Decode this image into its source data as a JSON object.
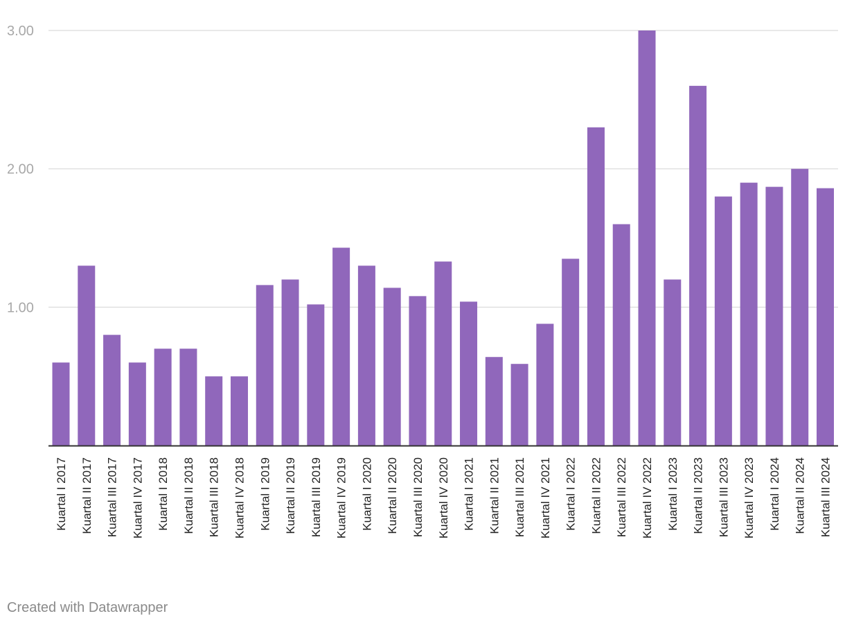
{
  "chart_data": {
    "type": "bar",
    "categories": [
      "Kuartal I 2017",
      "Kuartal II 2017",
      "Kuartal III 2017",
      "Kuartal IV 2017",
      "Kuartal I 2018",
      "Kuartal II 2018",
      "Kuartal III 2018",
      "Kuartal IV 2018",
      "Kuartal I 2019",
      "Kuartal II 2019",
      "Kuartal III 2019",
      "Kuartal IV 2019",
      "Kuartal I 2020",
      "Kuartal II 2020",
      "Kuartal III 2020",
      "Kuartal IV 2020",
      "Kuartal I 2021",
      "Kuartal II 2021",
      "Kuartal III 2021",
      "Kuartal IV 2021",
      "Kuartal I 2022",
      "Kuartal II 2022",
      "Kuartal III 2022",
      "Kuartal IV 2022",
      "Kuartal I 2023",
      "Kuartal II 2023",
      "Kuartal III 2023",
      "Kuartal IV 2023",
      "Kuartal I 2024",
      "Kuartal II 2024",
      "Kuartal III 2024"
    ],
    "values": [
      0.6,
      1.3,
      0.8,
      0.6,
      0.7,
      0.7,
      0.5,
      0.5,
      1.16,
      1.2,
      1.02,
      1.43,
      1.3,
      1.14,
      1.08,
      1.33,
      1.04,
      0.64,
      0.59,
      0.88,
      1.35,
      2.3,
      1.6,
      3.0,
      1.2,
      2.6,
      1.8,
      1.9,
      1.87,
      2.0,
      1.86
    ],
    "yticks": [
      "1.00",
      "2.00",
      "3.00"
    ],
    "ylim": [
      0,
      3
    ],
    "grid": true,
    "bar_color": "#9067bb",
    "title": "",
    "xlabel": "",
    "ylabel": ""
  },
  "footer": "Created with Datawrapper"
}
